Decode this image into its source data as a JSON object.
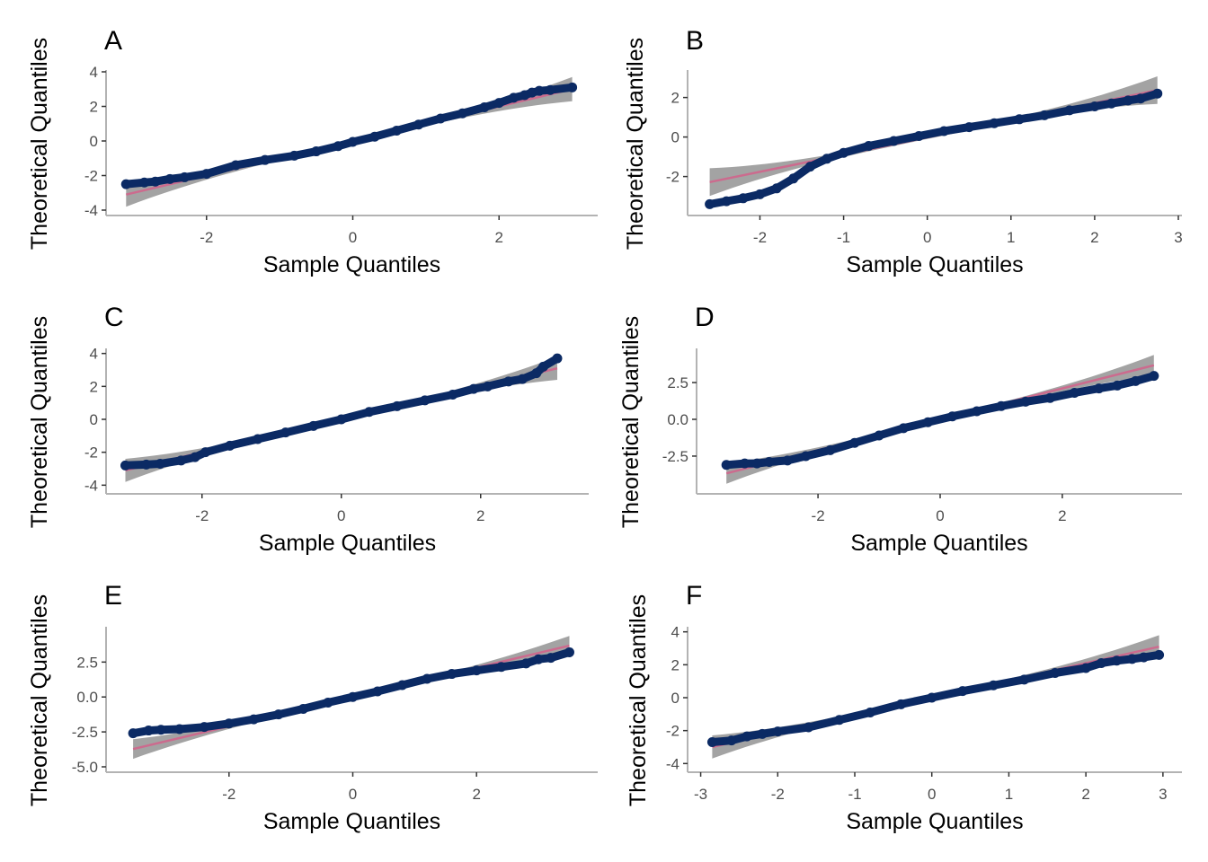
{
  "chart_data": [
    {
      "type": "scatter",
      "panel": "A",
      "xlabel": "Sample Quantiles",
      "ylabel": "Theoretical Quantiles",
      "xlim": [
        -3.3,
        3.3
      ],
      "ylim": [
        -4,
        4
      ],
      "xticks": [
        -2,
        0,
        2
      ],
      "yticks": [
        -4,
        -2,
        0,
        2,
        4
      ],
      "colors": {
        "points": "#0b2a64",
        "line": "#cc6b8e",
        "band": "#9e9e9e"
      },
      "reference_line": {
        "slope": 1.0,
        "intercept": 0.0
      },
      "points": [
        [
          -3.1,
          -2.5
        ],
        [
          -2.85,
          -2.4
        ],
        [
          -2.7,
          -2.35
        ],
        [
          -2.5,
          -2.2
        ],
        [
          -2.3,
          -2.1
        ],
        [
          -2.0,
          -1.9
        ],
        [
          -1.6,
          -1.4
        ],
        [
          -1.2,
          -1.1
        ],
        [
          -0.8,
          -0.85
        ],
        [
          -0.5,
          -0.6
        ],
        [
          -0.2,
          -0.3
        ],
        [
          0.0,
          -0.05
        ],
        [
          0.3,
          0.25
        ],
        [
          0.6,
          0.6
        ],
        [
          0.9,
          0.95
        ],
        [
          1.2,
          1.3
        ],
        [
          1.5,
          1.6
        ],
        [
          1.8,
          1.95
        ],
        [
          2.0,
          2.2
        ],
        [
          2.2,
          2.5
        ],
        [
          2.35,
          2.65
        ],
        [
          2.45,
          2.8
        ],
        [
          2.55,
          2.9
        ],
        [
          2.7,
          2.95
        ],
        [
          3.0,
          3.1
        ]
      ],
      "grid": false,
      "legend": "none"
    },
    {
      "type": "scatter",
      "panel": "B",
      "xlabel": "Sample Quantiles",
      "ylabel": "Theoretical Quantiles",
      "xlim": [
        -2.8,
        3.0
      ],
      "ylim": [
        -3.7,
        3.3
      ],
      "xticks": [
        -2,
        -1,
        0,
        1,
        2,
        3
      ],
      "yticks": [
        -2,
        0,
        2
      ],
      "colors": {
        "points": "#0b2a64",
        "line": "#cc6b8e",
        "band": "#9e9e9e"
      },
      "reference_line": {
        "slope": 0.87,
        "intercept": -0.02
      },
      "points": [
        [
          -2.6,
          -3.4
        ],
        [
          -2.4,
          -3.25
        ],
        [
          -2.2,
          -3.1
        ],
        [
          -2.0,
          -2.9
        ],
        [
          -1.8,
          -2.6
        ],
        [
          -1.6,
          -2.1
        ],
        [
          -1.4,
          -1.5
        ],
        [
          -1.2,
          -1.1
        ],
        [
          -1.0,
          -0.8
        ],
        [
          -0.7,
          -0.45
        ],
        [
          -0.4,
          -0.2
        ],
        [
          -0.1,
          0.05
        ],
        [
          0.2,
          0.3
        ],
        [
          0.5,
          0.5
        ],
        [
          0.8,
          0.7
        ],
        [
          1.1,
          0.9
        ],
        [
          1.4,
          1.1
        ],
        [
          1.7,
          1.35
        ],
        [
          2.0,
          1.55
        ],
        [
          2.2,
          1.7
        ],
        [
          2.4,
          1.85
        ],
        [
          2.55,
          1.95
        ],
        [
          2.75,
          2.2
        ]
      ],
      "grid": false,
      "legend": "none"
    },
    {
      "type": "scatter",
      "panel": "C",
      "xlabel": "Sample Quantiles",
      "ylabel": "Theoretical Quantiles",
      "xlim": [
        -3.3,
        3.5
      ],
      "ylim": [
        -4.2,
        4.2
      ],
      "xticks": [
        -2,
        0,
        2
      ],
      "yticks": [
        -4,
        -2,
        0,
        2,
        4
      ],
      "colors": {
        "points": "#0b2a64",
        "line": "#cc6b8e",
        "band": "#9e9e9e"
      },
      "reference_line": {
        "slope": 1.0,
        "intercept": 0.0
      },
      "points": [
        [
          -3.1,
          -2.8
        ],
        [
          -2.8,
          -2.75
        ],
        [
          -2.6,
          -2.7
        ],
        [
          -2.3,
          -2.5
        ],
        [
          -2.1,
          -2.3
        ],
        [
          -1.95,
          -2.0
        ],
        [
          -1.6,
          -1.6
        ],
        [
          -1.2,
          -1.2
        ],
        [
          -0.8,
          -0.8
        ],
        [
          -0.4,
          -0.4
        ],
        [
          0.0,
          0.0
        ],
        [
          0.4,
          0.45
        ],
        [
          0.8,
          0.8
        ],
        [
          1.2,
          1.15
        ],
        [
          1.6,
          1.5
        ],
        [
          1.9,
          1.85
        ],
        [
          2.1,
          2.0
        ],
        [
          2.4,
          2.3
        ],
        [
          2.6,
          2.45
        ],
        [
          2.8,
          2.8
        ],
        [
          2.9,
          3.2
        ],
        [
          3.1,
          3.7
        ]
      ],
      "grid": false,
      "legend": "none"
    },
    {
      "type": "scatter",
      "panel": "D",
      "xlabel": "Sample Quantiles",
      "ylabel": "Theoretical Quantiles",
      "xlim": [
        -3.9,
        3.9
      ],
      "ylim": [
        -4.7,
        4.7
      ],
      "xticks": [
        -2,
        0,
        2
      ],
      "yticks": [
        -2.5,
        0.0,
        2.5
      ],
      "ytick_labels": [
        "-2.5",
        "0.0",
        "2.5"
      ],
      "colors": {
        "points": "#0b2a64",
        "line": "#cc6b8e",
        "band": "#9e9e9e"
      },
      "reference_line": {
        "slope": 1.05,
        "intercept": 0.0
      },
      "points": [
        [
          -3.5,
          -3.1
        ],
        [
          -3.2,
          -3.0
        ],
        [
          -3.0,
          -3.0
        ],
        [
          -2.8,
          -2.9
        ],
        [
          -2.5,
          -2.8
        ],
        [
          -2.2,
          -2.5
        ],
        [
          -1.8,
          -2.1
        ],
        [
          -1.4,
          -1.6
        ],
        [
          -1.0,
          -1.1
        ],
        [
          -0.6,
          -0.6
        ],
        [
          -0.2,
          -0.2
        ],
        [
          0.2,
          0.2
        ],
        [
          0.6,
          0.55
        ],
        [
          1.0,
          0.9
        ],
        [
          1.4,
          1.2
        ],
        [
          1.8,
          1.45
        ],
        [
          2.2,
          1.8
        ],
        [
          2.6,
          2.1
        ],
        [
          2.9,
          2.3
        ],
        [
          3.2,
          2.6
        ],
        [
          3.5,
          2.95
        ]
      ],
      "grid": false,
      "legend": "none"
    },
    {
      "type": "scatter",
      "panel": "E",
      "xlabel": "Sample Quantiles",
      "ylabel": "Theoretical Quantiles",
      "xlim": [
        -3.9,
        3.9
      ],
      "ylim": [
        -5.0,
        4.9
      ],
      "xticks": [
        -2,
        0,
        2
      ],
      "yticks": [
        -5.0,
        -2.5,
        0.0,
        2.5
      ],
      "ytick_labels": [
        "-5.0",
        "-2.5",
        "0.0",
        "2.5"
      ],
      "colors": {
        "points": "#0b2a64",
        "line": "#cc6b8e",
        "band": "#9e9e9e"
      },
      "reference_line": {
        "slope": 1.05,
        "intercept": 0.0
      },
      "points": [
        [
          -3.55,
          -2.6
        ],
        [
          -3.3,
          -2.4
        ],
        [
          -3.1,
          -2.35
        ],
        [
          -2.8,
          -2.3
        ],
        [
          -2.4,
          -2.15
        ],
        [
          -2.0,
          -1.9
        ],
        [
          -1.6,
          -1.6
        ],
        [
          -1.2,
          -1.25
        ],
        [
          -0.8,
          -0.85
        ],
        [
          -0.4,
          -0.4
        ],
        [
          0.0,
          0.0
        ],
        [
          0.4,
          0.4
        ],
        [
          0.8,
          0.85
        ],
        [
          1.2,
          1.3
        ],
        [
          1.6,
          1.65
        ],
        [
          2.0,
          1.9
        ],
        [
          2.4,
          2.15
        ],
        [
          2.8,
          2.4
        ],
        [
          3.0,
          2.7
        ],
        [
          3.2,
          2.8
        ],
        [
          3.5,
          3.2
        ]
      ],
      "grid": false,
      "legend": "none"
    },
    {
      "type": "scatter",
      "panel": "F",
      "xlabel": "Sample Quantiles",
      "ylabel": "Theoretical Quantiles",
      "xlim": [
        -3.1,
        3.2
      ],
      "ylim": [
        -4.2,
        4.2
      ],
      "xticks": [
        -3,
        -2,
        -1,
        0,
        1,
        2,
        3
      ],
      "yticks": [
        -4,
        -2,
        0,
        2,
        4
      ],
      "colors": {
        "points": "#0b2a64",
        "line": "#cc6b8e",
        "band": "#9e9e9e"
      },
      "reference_line": {
        "slope": 1.05,
        "intercept": 0.0
      },
      "points": [
        [
          -2.85,
          -2.7
        ],
        [
          -2.6,
          -2.6
        ],
        [
          -2.4,
          -2.35
        ],
        [
          -2.2,
          -2.2
        ],
        [
          -2.0,
          -2.05
        ],
        [
          -1.6,
          -1.8
        ],
        [
          -1.2,
          -1.35
        ],
        [
          -0.8,
          -0.9
        ],
        [
          -0.4,
          -0.4
        ],
        [
          0.0,
          0.0
        ],
        [
          0.4,
          0.4
        ],
        [
          0.8,
          0.75
        ],
        [
          1.2,
          1.1
        ],
        [
          1.6,
          1.5
        ],
        [
          2.0,
          1.8
        ],
        [
          2.2,
          2.1
        ],
        [
          2.4,
          2.25
        ],
        [
          2.6,
          2.35
        ],
        [
          2.75,
          2.45
        ],
        [
          2.95,
          2.6
        ]
      ],
      "grid": false,
      "legend": "none"
    }
  ]
}
